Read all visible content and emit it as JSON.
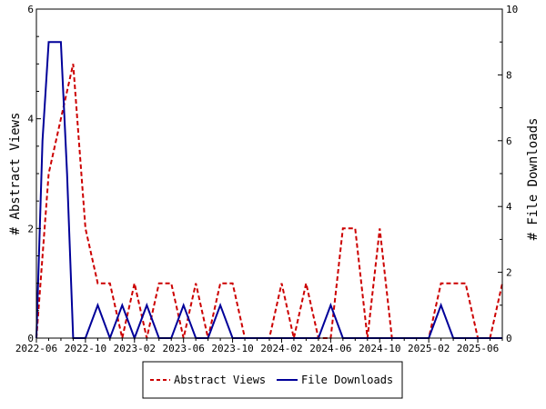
{
  "chart_data": {
    "type": "line",
    "title": "",
    "ylabel_left": "# Abstract Views",
    "ylabel_right": "# File Downloads",
    "xlabel": "",
    "x_tick_labels": [
      "2022-06",
      "2022-10",
      "2023-02",
      "2023-06",
      "2023-10",
      "2024-02",
      "2024-06",
      "2024-10",
      "2025-02",
      "2025-06"
    ],
    "x_tick_month_index": [
      0,
      4,
      8,
      12,
      16,
      20,
      24,
      28,
      32,
      36
    ],
    "x_range_month_index": [
      0,
      38
    ],
    "ylim_left": [
      0,
      6
    ],
    "yticks_left": [
      0,
      2,
      4,
      6
    ],
    "ylim_right": [
      0,
      10
    ],
    "yticks_right": [
      0,
      2,
      4,
      6,
      8,
      10
    ],
    "legend_position": "bottom-center",
    "grid": false,
    "series": [
      {
        "name": "Abstract Views",
        "axis": "left",
        "color": "#cc0000",
        "dash": true,
        "x_month_index": [
          0,
          1,
          2,
          3,
          4,
          5,
          6,
          7,
          8,
          9,
          10,
          11,
          12,
          13,
          14,
          15,
          16,
          17,
          18,
          19,
          20,
          21,
          22,
          23,
          24,
          25,
          26,
          27,
          28,
          29,
          30,
          31,
          32,
          33,
          34,
          35,
          36,
          37,
          38
        ],
        "values": [
          0,
          3,
          4,
          5,
          2,
          1,
          1,
          0,
          1,
          0,
          1,
          1,
          0,
          1,
          0,
          1,
          1,
          0,
          0,
          0,
          1,
          0,
          1,
          0,
          0,
          2,
          2,
          0,
          2,
          0,
          0,
          0,
          0,
          1,
          1,
          1,
          0,
          0,
          1
        ]
      },
      {
        "name": "File Downloads",
        "axis": "right",
        "color": "#000099",
        "dash": false,
        "x_month_index": [
          0,
          0.5,
          1,
          1.5,
          2,
          2.5,
          3,
          4,
          5,
          6,
          7,
          8,
          9,
          10,
          11,
          12,
          13,
          14,
          15,
          16,
          17,
          18,
          19,
          20,
          21,
          22,
          23,
          24,
          25,
          26,
          27,
          28,
          29,
          30,
          31,
          32,
          33,
          34,
          35,
          36,
          37,
          38
        ],
        "values": [
          0,
          6,
          9,
          9,
          9,
          5,
          0,
          0,
          1,
          0,
          1,
          0,
          1,
          0,
          0,
          1,
          0,
          0,
          1,
          0,
          0,
          0,
          0,
          0,
          0,
          0,
          0,
          1,
          0,
          0,
          0,
          0,
          0,
          0,
          0,
          0,
          1,
          0,
          0,
          0,
          0,
          0
        ]
      }
    ]
  }
}
